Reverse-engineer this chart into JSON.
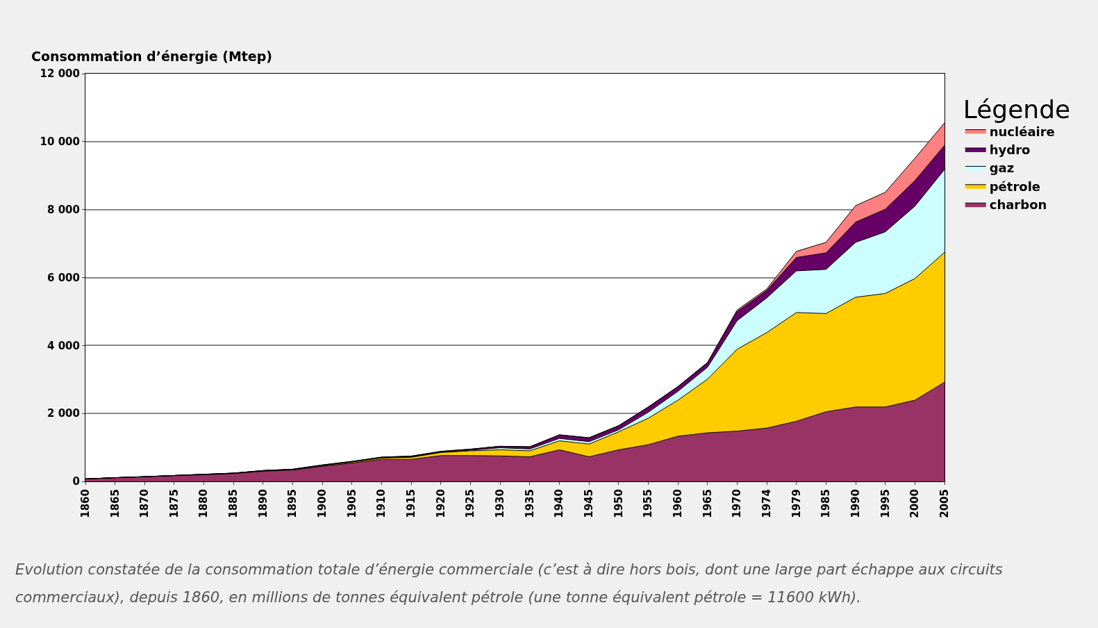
{
  "chart_data": {
    "type": "area",
    "stacked": true,
    "ylabel": "Consommation d’énergie (Mtep)",
    "legend_title": "Légende",
    "categories": [
      "1860",
      "1865",
      "1870",
      "1875",
      "1880",
      "1885",
      "1890",
      "1895",
      "1900",
      "1905",
      "1910",
      "1915",
      "1920",
      "1925",
      "1930",
      "1935",
      "1940",
      "1945",
      "1950",
      "1955",
      "1960",
      "1965",
      "1970",
      "1974",
      "1979",
      "1985",
      "1990",
      "1995",
      "2000",
      "2005"
    ],
    "series": [
      {
        "name": "charbon",
        "color": "#993366",
        "values": [
          75,
          110,
          140,
          170,
          195,
          230,
          300,
          335,
          445,
          540,
          650,
          650,
          760,
          760,
          750,
          725,
          930,
          725,
          930,
          1080,
          1330,
          1430,
          1480,
          1570,
          1770,
          2050,
          2190,
          2190,
          2390,
          2920
        ]
      },
      {
        "name": "pétrole",
        "color": "#ffcc00",
        "values": [
          0,
          0,
          0,
          5,
          10,
          10,
          15,
          15,
          20,
          30,
          40,
          60,
          90,
          140,
          180,
          175,
          265,
          375,
          530,
          780,
          1060,
          1580,
          2410,
          2810,
          3200,
          2890,
          3230,
          3340,
          3580,
          3820
        ]
      },
      {
        "name": "gaz",
        "color": "#ccffff",
        "values": [
          0,
          0,
          0,
          0,
          5,
          5,
          5,
          5,
          10,
          10,
          10,
          10,
          15,
          20,
          60,
          55,
          70,
          70,
          60,
          175,
          260,
          350,
          840,
          1020,
          1225,
          1300,
          1615,
          1815,
          2130,
          2440
        ]
      },
      {
        "name": "hydro",
        "color": "#660066",
        "values": [
          0,
          0,
          0,
          0,
          0,
          0,
          0,
          5,
          10,
          10,
          15,
          25,
          20,
          30,
          45,
          65,
          105,
          115,
          120,
          155,
          140,
          140,
          270,
          220,
          395,
          485,
          595,
          665,
          750,
          710
        ]
      },
      {
        "name": "nucléaire",
        "color": "#ff8080",
        "values": [
          0,
          0,
          0,
          0,
          0,
          0,
          0,
          0,
          0,
          0,
          0,
          0,
          0,
          0,
          0,
          0,
          0,
          0,
          0,
          0,
          0,
          0,
          45,
          45,
          180,
          310,
          485,
          500,
          660,
          660
        ]
      }
    ],
    "ylim": [
      0,
      12000
    ],
    "yticks": [
      0,
      {
        "value": 2000,
        "label": "2 000"
      },
      {
        "value": 4000,
        "label": "4 000"
      },
      {
        "value": 6000,
        "label": "6 000"
      },
      {
        "value": 8000,
        "label": "8 000"
      },
      {
        "value": 10000,
        "label": "10 000"
      },
      {
        "value": 12000,
        "label": "12 000"
      }
    ],
    "grid": "y",
    "legend": "right",
    "marker": "none",
    "line_style": "solid",
    "annotations": [
      "Evolution constatée de la consommation totale d’énergie commerciale (c’est à dire hors bois, dont une large part échappe aux circuits commerciaux), depuis 1860, en millions de tonnes équivalent pétrole (une tonne équivalent pétrole = 11600 kWh)."
    ]
  }
}
